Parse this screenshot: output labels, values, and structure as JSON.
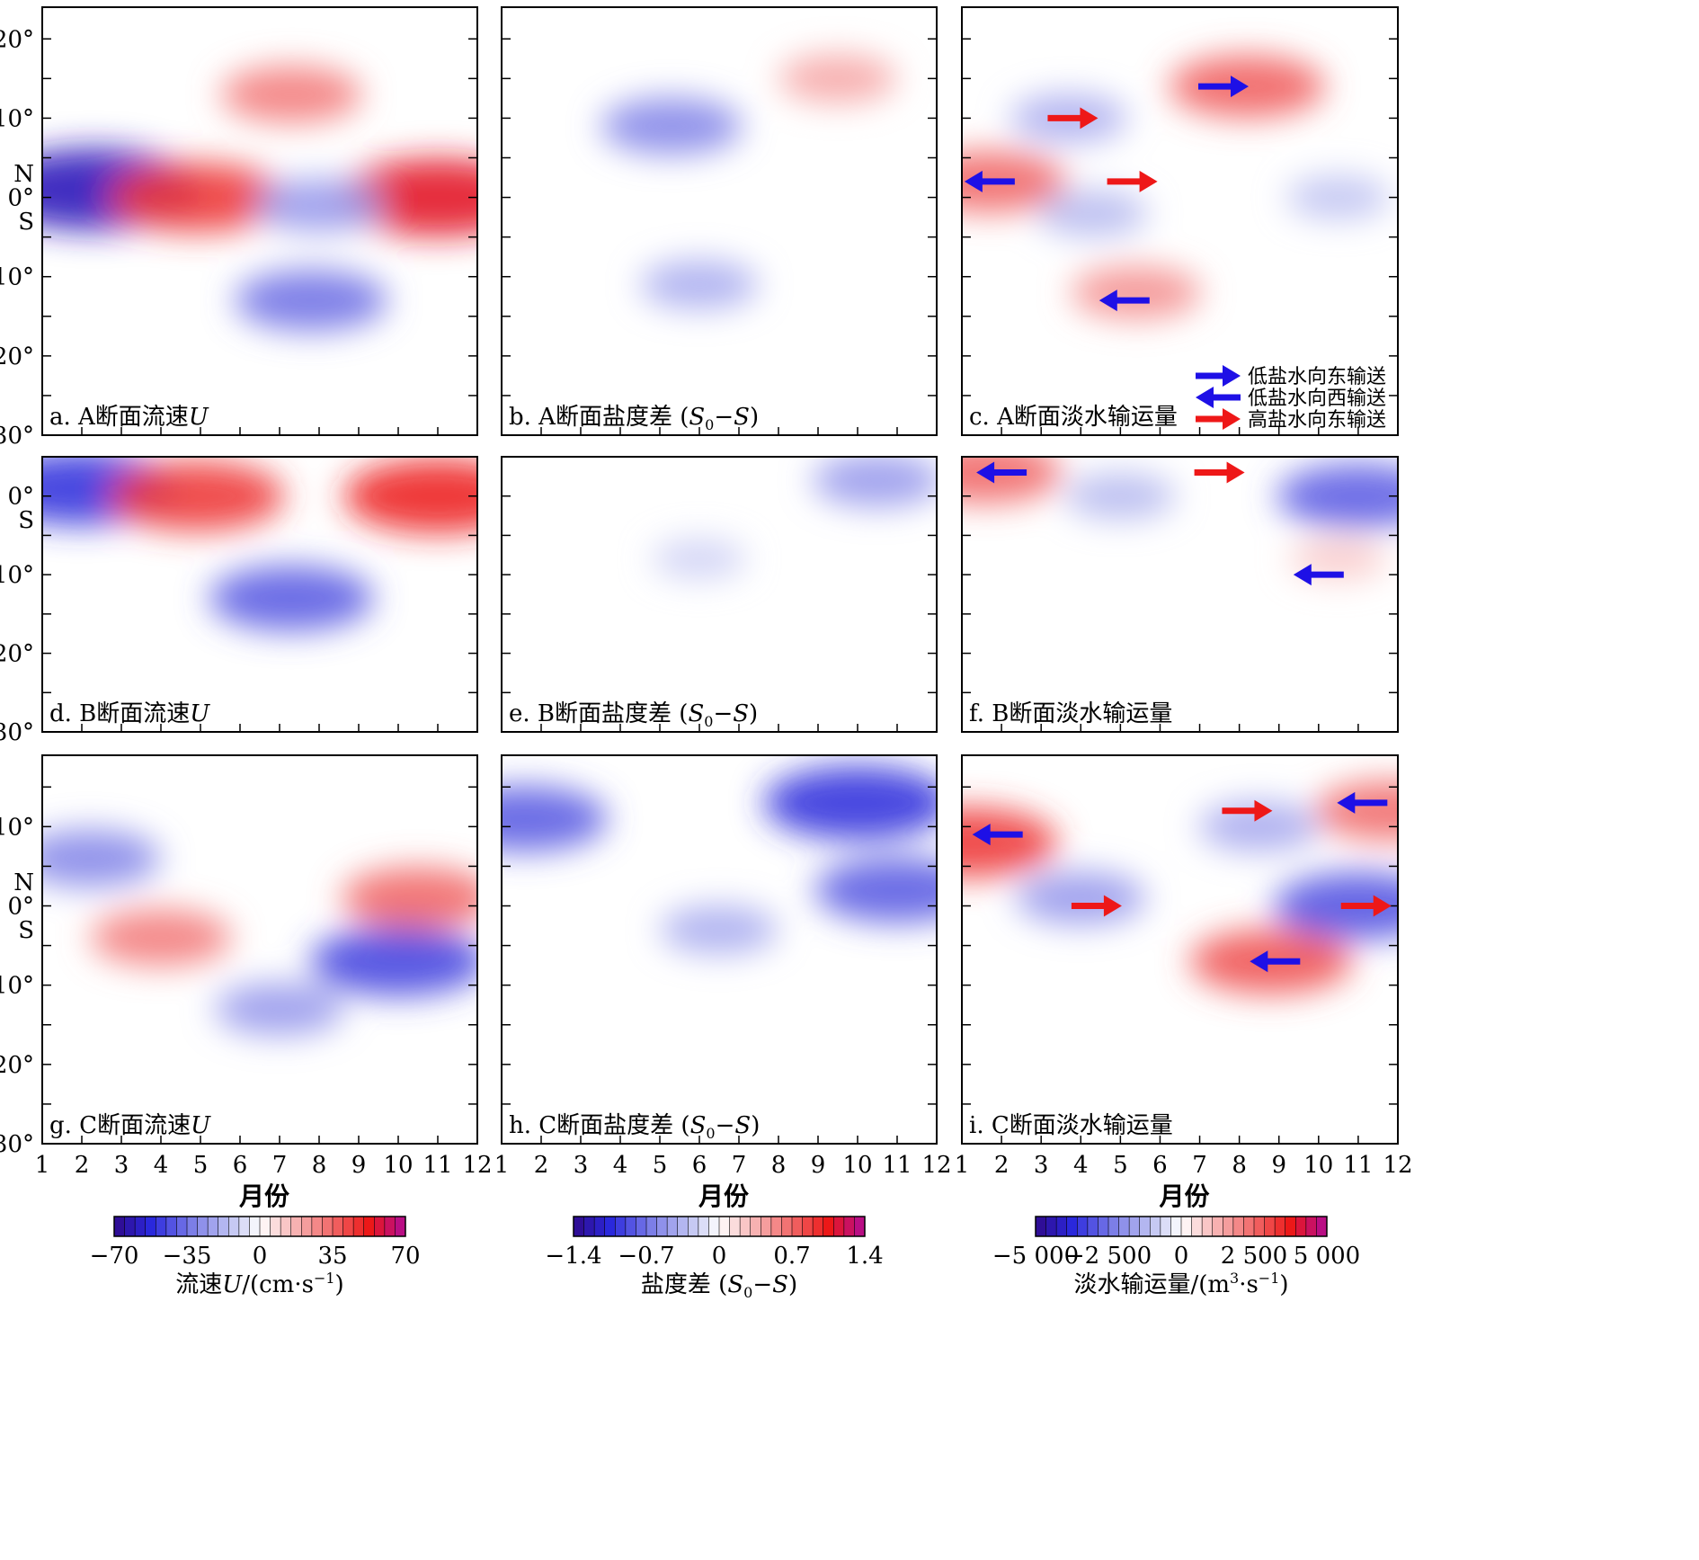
{
  "figure": {
    "ytick_labels": {
      "row1": [
        {
          "lat": 20,
          "text": "20°"
        },
        {
          "lat": 10,
          "text": "10°"
        },
        {
          "lat": 3,
          "text": "N"
        },
        {
          "lat": 0,
          "text": "0°"
        },
        {
          "lat": -3,
          "text": "S"
        },
        {
          "lat": -10,
          "text": "10°"
        },
        {
          "lat": -20,
          "text": "20°"
        },
        {
          "lat": -30,
          "text": "30°"
        }
      ],
      "row2": [
        {
          "lat": 0,
          "text": "0°"
        },
        {
          "lat": -3,
          "text": "S"
        },
        {
          "lat": -10,
          "text": "10°"
        },
        {
          "lat": -20,
          "text": "20°"
        },
        {
          "lat": -30,
          "text": "30°"
        }
      ],
      "row3": [
        {
          "lat": 10,
          "text": "10°"
        },
        {
          "lat": 3,
          "text": "N"
        },
        {
          "lat": 0,
          "text": "0°"
        },
        {
          "lat": -3,
          "text": "S"
        },
        {
          "lat": -10,
          "text": "10°"
        },
        {
          "lat": -20,
          "text": "20°"
        },
        {
          "lat": -30,
          "text": "30°"
        }
      ]
    },
    "month_ticks": [
      "1",
      "2",
      "3",
      "4",
      "5",
      "6",
      "7",
      "8",
      "9",
      "10",
      "11",
      "12"
    ],
    "xlabel": "月份",
    "legend": [
      {
        "color": "#1e10e6",
        "dir": "east",
        "label": "低盐水向东输送"
      },
      {
        "color": "#1e10e6",
        "dir": "west",
        "label": "低盐水向西输送"
      },
      {
        "color": "#ee1818",
        "dir": "east",
        "label": "高盐水向东输送"
      }
    ]
  },
  "chart_data": [
    {
      "id": "a",
      "type": "heatmap",
      "variable": "U",
      "title": "a. A断面流速U",
      "title_plain": "a. A断面流速",
      "title_ital": "U",
      "x": "month",
      "xlim": [
        1,
        12
      ],
      "ylim": [
        -30,
        24
      ],
      "features": [
        {
          "month": 2.3,
          "lat": 1,
          "value": -60
        },
        {
          "month": 4.9,
          "lat": 0,
          "value": 45
        },
        {
          "month": 11,
          "lat": 0,
          "value": 55
        },
        {
          "month": 7.3,
          "lat": 13,
          "value": 30
        },
        {
          "month": 7.8,
          "lat": -13,
          "value": -35
        },
        {
          "month": 8,
          "lat": -1,
          "value": -25
        }
      ]
    },
    {
      "id": "b",
      "type": "heatmap",
      "variable": "S0-S",
      "title": "b. A断面盐度差 (S0−S)",
      "title_plain": "b. A断面盐度差 (",
      "title_ital": "S",
      "title_sub": "0",
      "title_tail": "−S)",
      "x": "month",
      "xlim": [
        1,
        12
      ],
      "ylim": [
        -30,
        24
      ],
      "features": [
        {
          "month": 5.3,
          "lat": 9,
          "value": -0.6
        },
        {
          "month": 9.5,
          "lat": 15,
          "value": 0.4
        },
        {
          "month": 6,
          "lat": -11,
          "value": -0.4
        }
      ]
    },
    {
      "id": "c",
      "type": "heatmap",
      "variable": "freshwater transport",
      "title": "c. A断面淡水输运量",
      "title_plain": "c. A断面淡水输运量",
      "x": "month",
      "xlim": [
        1,
        12
      ],
      "ylim": [
        -30,
        24
      ],
      "features": [
        {
          "month": 8.2,
          "lat": 14,
          "value": 2600
        },
        {
          "month": 1.7,
          "lat": 2,
          "value": 2500
        },
        {
          "month": 5.4,
          "lat": -12,
          "value": 1800
        },
        {
          "month": 3.7,
          "lat": 10,
          "value": -1400
        },
        {
          "month": 4.3,
          "lat": -2,
          "value": -1200
        },
        {
          "month": 10.5,
          "lat": 0,
          "value": -1000
        }
      ],
      "arrows": [
        {
          "month": 3.8,
          "lat": 10,
          "color": "red",
          "dir": "east"
        },
        {
          "month": 7.6,
          "lat": 14,
          "color": "blue",
          "dir": "east"
        },
        {
          "month": 1.7,
          "lat": 2,
          "color": "blue",
          "dir": "west"
        },
        {
          "month": 5.3,
          "lat": 2,
          "color": "red",
          "dir": "east"
        },
        {
          "month": 5.1,
          "lat": -13,
          "color": "blue",
          "dir": "west"
        }
      ]
    },
    {
      "id": "d",
      "type": "heatmap",
      "variable": "U",
      "title": "d. B断面流速U",
      "title_plain": "d. B断面流速",
      "title_ital": "U",
      "x": "month",
      "xlim": [
        1,
        12
      ],
      "ylim": [
        -30,
        5
      ],
      "features": [
        {
          "month": 2,
          "lat": 1,
          "value": -50
        },
        {
          "month": 4.9,
          "lat": 0,
          "value": 45
        },
        {
          "month": 11,
          "lat": 0,
          "value": 50
        },
        {
          "month": 7.3,
          "lat": -13,
          "value": -40
        }
      ]
    },
    {
      "id": "e",
      "type": "heatmap",
      "variable": "S0-S",
      "title": "e. B断面盐度差 (S0−S)",
      "title_plain": "e. B断面盐度差 (",
      "title_ital": "S",
      "title_sub": "0",
      "title_tail": "−S)",
      "x": "month",
      "xlim": [
        1,
        12
      ],
      "ylim": [
        -30,
        5
      ],
      "features": [
        {
          "month": 10.5,
          "lat": 2,
          "value": -0.5
        },
        {
          "month": 6,
          "lat": -8,
          "value": -0.2
        }
      ]
    },
    {
      "id": "f",
      "type": "heatmap",
      "variable": "freshwater transport",
      "title": "f. B断面淡水输运量",
      "title_plain": "f. B断面淡水输运量",
      "x": "month",
      "xlim": [
        1,
        12
      ],
      "ylim": [
        -30,
        5
      ],
      "features": [
        {
          "month": 11,
          "lat": 0,
          "value": -2800
        },
        {
          "month": 1.6,
          "lat": 3,
          "value": 2500
        },
        {
          "month": 5,
          "lat": 0,
          "value": -1200
        },
        {
          "month": 10.5,
          "lat": -8,
          "value": 800
        }
      ],
      "arrows": [
        {
          "month": 2,
          "lat": 3,
          "color": "blue",
          "dir": "west"
        },
        {
          "month": 7.5,
          "lat": 3,
          "color": "red",
          "dir": "east"
        },
        {
          "month": 10,
          "lat": -10,
          "color": "blue",
          "dir": "west"
        }
      ]
    },
    {
      "id": "g",
      "type": "heatmap",
      "variable": "U",
      "title": "g. C断面流速U",
      "title_plain": "g. C断面流速",
      "title_ital": "U",
      "x": "month",
      "xlim": [
        1,
        12
      ],
      "ylim": [
        -30,
        19
      ],
      "features": [
        {
          "month": 4,
          "lat": -4,
          "value": 30
        },
        {
          "month": 10.5,
          "lat": 1,
          "value": 35
        },
        {
          "month": 10,
          "lat": -7,
          "value": -45
        },
        {
          "month": 2.2,
          "lat": 6,
          "value": -30
        },
        {
          "month": 7,
          "lat": -13,
          "value": -25
        }
      ]
    },
    {
      "id": "h",
      "type": "heatmap",
      "variable": "S0-S",
      "title": "h. C断面盐度差 (S0−S)",
      "title_plain": "h. C断面盐度差 (",
      "title_ital": "S",
      "title_sub": "0",
      "title_tail": "−S)",
      "x": "month",
      "xlim": [
        1,
        12
      ],
      "ylim": [
        -30,
        19
      ],
      "features": [
        {
          "month": 10,
          "lat": 13,
          "value": -1.0
        },
        {
          "month": 1.6,
          "lat": 11,
          "value": -0.8
        },
        {
          "month": 11,
          "lat": 2,
          "value": -0.8
        },
        {
          "month": 6.5,
          "lat": -3,
          "value": -0.4
        }
      ]
    },
    {
      "id": "i",
      "type": "heatmap",
      "variable": "freshwater transport",
      "title": "i. C断面淡水输运量",
      "title_plain": "i. C断面淡水输运量",
      "x": "month",
      "xlim": [
        1,
        12
      ],
      "ylim": [
        -30,
        19
      ],
      "features": [
        {
          "month": 1.2,
          "lat": 8,
          "value": 3200
        },
        {
          "month": 8.8,
          "lat": -7,
          "value": 2800
        },
        {
          "month": 11.8,
          "lat": 12,
          "value": 2400
        },
        {
          "month": 4,
          "lat": 1,
          "value": -1800
        },
        {
          "month": 11,
          "lat": 0,
          "value": -3000
        },
        {
          "month": 8.5,
          "lat": 10,
          "value": -1500
        }
      ],
      "arrows": [
        {
          "month": 1.9,
          "lat": 9,
          "color": "blue",
          "dir": "west"
        },
        {
          "month": 4.4,
          "lat": 0,
          "color": "red",
          "dir": "east"
        },
        {
          "month": 8.2,
          "lat": 12,
          "color": "red",
          "dir": "east"
        },
        {
          "month": 11.1,
          "lat": 13,
          "color": "blue",
          "dir": "west"
        },
        {
          "month": 11.2,
          "lat": 0,
          "color": "red",
          "dir": "east"
        },
        {
          "month": 8.9,
          "lat": -7,
          "color": "blue",
          "dir": "west"
        }
      ]
    }
  ],
  "colorbars": [
    {
      "id": "u",
      "ticks": [
        "−70",
        "−35",
        "0",
        "35",
        "70"
      ],
      "vmin": -70,
      "vmax": 70,
      "label": "流速U/(cm·s−1)",
      "label_a": "流速",
      "label_ital": "U",
      "label_b": "/(cm·s",
      "label_sup": "−1",
      "label_c": ")"
    },
    {
      "id": "s",
      "ticks": [
        "−1.4",
        "−0.7",
        "0",
        "0.7",
        "1.4"
      ],
      "vmin": -1.4,
      "vmax": 1.4,
      "label": "盐度差 (S0−S)",
      "label_a": "盐度差 (",
      "label_ital": "S",
      "label_sub": "0",
      "label_c": "−S)"
    },
    {
      "id": "f",
      "ticks": [
        "−5 000",
        "−2 500",
        "0",
        "2 500",
        "5 000"
      ],
      "vmin": -5000,
      "vmax": 5000,
      "label": "淡水输运量/(m3·s−1)",
      "label_a": "淡水输运量/(m",
      "label_sup": "3",
      "label_b": "·s",
      "label_sup2": "−1",
      "label_c": ")"
    }
  ],
  "colors": {
    "blue": "#1e10e6",
    "red": "#ee1818"
  }
}
